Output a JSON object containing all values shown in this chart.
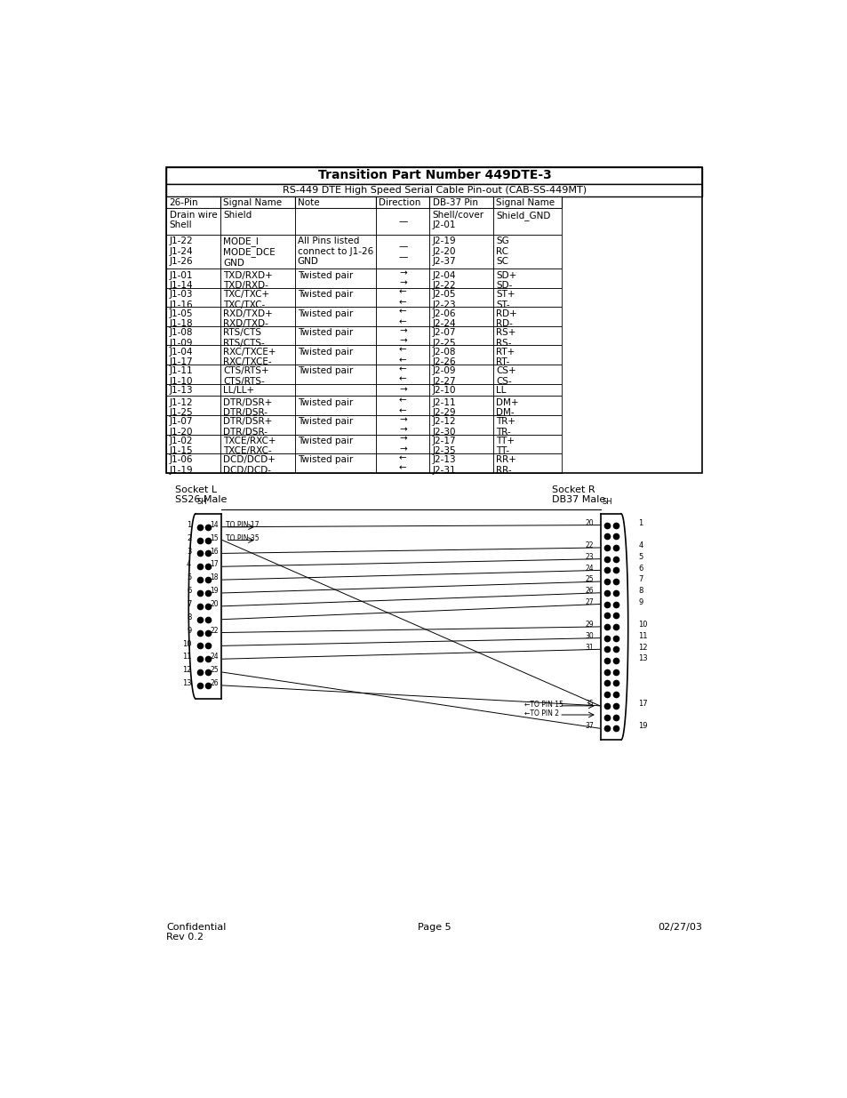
{
  "title": "Transition Part Number 449DTE-3",
  "subtitle": "RS-449 DTE High Speed Serial Cable Pin-out (CAB-SS-449MT)",
  "col_headers": [
    "26-Pin",
    "Signal Name",
    "Note",
    "Direction",
    "DB-37 Pin",
    "Signal Name"
  ],
  "rows": [
    [
      "Drain wire\nShell",
      "Shield",
      "",
      "—",
      "Shell/cover\nJ2-01",
      "Shield_GND"
    ],
    [
      "J1-22\nJ1-24\nJ1-26",
      "MODE_I\nMODE_DCE\nGND",
      "All Pins listed\nconnect to J1-26\nGND",
      "—\n—",
      "J2-19\nJ2-20\nJ2-37",
      "SG\nRC\nSC"
    ],
    [
      "J1-01\nJ1-14",
      "TXD/RXD+\nTXD/RXD-",
      "Twisted pair",
      "→\n→",
      "J2-04\nJ2-22",
      "SD+\nSD-"
    ],
    [
      "J1-03\nJ1-16",
      "TXC/TXC+\nTXC/TXC-",
      "Twisted pair",
      "←\n←",
      "J2-05\nJ2-23",
      "ST+\nST-"
    ],
    [
      "J1-05\nJ1-18",
      "RXD/TXD+\nRXD/TXD-",
      "Twisted pair",
      "←\n←",
      "J2-06\nJ2-24",
      "RD+\nRD-"
    ],
    [
      "J1-08\nJ1-09",
      "RTS/CTS\nRTS/CTS-",
      "Twisted pair",
      "→\n→",
      "J2-07\nJ2-25",
      "RS+\nRS-"
    ],
    [
      "J1-04\nJ1-17",
      "RXC/TXCE+\nRXC/TXCE-",
      "Twisted pair",
      "←\n←",
      "J2-08\nJ2-26",
      "RT+\nRT-"
    ],
    [
      "J1-11\nJ1-10",
      "CTS/RTS+\nCTS/RTS-",
      "Twisted pair",
      "←\n←",
      "J2-09\nJ2-27",
      "CS+\nCS-"
    ],
    [
      "J1-13",
      "LL/LL+",
      "",
      "→",
      "J2-10",
      "LL"
    ],
    [
      "J1-12\nJ1-25",
      "DTR/DSR+\nDTR/DSR-",
      "Twisted pair",
      "←\n←",
      "J2-11\nJ2-29",
      "DM+\nDM-"
    ],
    [
      "J1-07\nJ1-20",
      "DTR/DSR+\nDTR/DSR-",
      "Twisted pair",
      "→\n→",
      "J2-12\nJ2-30",
      "TR+\nTR-"
    ],
    [
      "J1-02\nJ1-15",
      "TXCE/RXC+\nTXCE/RXC-",
      "Twisted pair",
      "→\n→",
      "J2-17\nJ2-35",
      "TT+\nTT-"
    ],
    [
      "J1-06\nJ1-19",
      "DCD/DCD+\nDCD/DCD-",
      "Twisted pair",
      "←\n←",
      "J2-13\nJ2-31",
      "RR+\nRR-"
    ]
  ],
  "footer_left": "Confidential\nRev 0.2",
  "footer_center": "Page 5",
  "footer_right": "02/27/03",
  "socket_l_label": "Socket L\nSS26 Male",
  "socket_r_label": "Socket R\nDB37 Male",
  "bg_color": "#ffffff"
}
